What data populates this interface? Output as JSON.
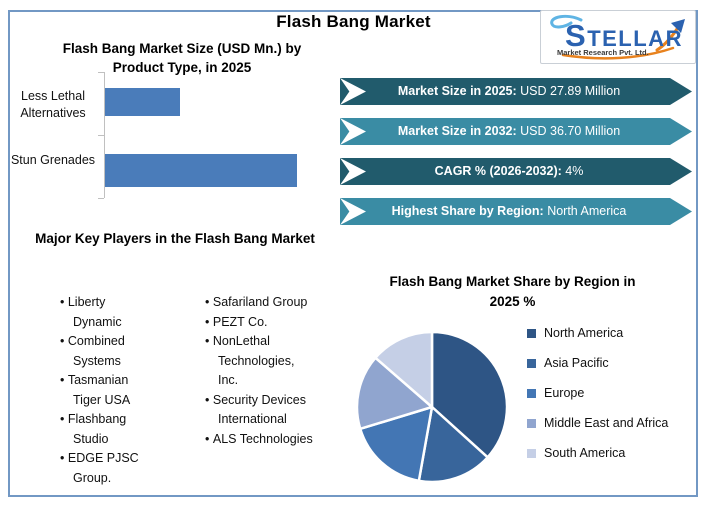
{
  "page": {
    "title": "Flash Bang Market"
  },
  "logo": {
    "brand": "STELLAR",
    "caption": "Market Research Pvt. Ltd."
  },
  "theme": {
    "banner_dark": "#215B6C",
    "banner_light": "#3A8CA4",
    "bar_color": "#4A7CBA",
    "frame_border": "#7298C4"
  },
  "banners": [
    {
      "label": "Market Size in 2025:",
      "value": "USD 27.89 Million"
    },
    {
      "label": "Market Size in 2032:",
      "value": "USD 36.70 Million"
    },
    {
      "label": "CAGR % (2026-2032):",
      "value": "4%"
    },
    {
      "label": "Highest Share by Region:",
      "value": "North America"
    }
  ],
  "key_players": {
    "heading": "Major Key Players in the Flash Bang Market",
    "column1": [
      "Liberty Dynamic",
      "Combined Systems",
      "Tasmanian Tiger USA",
      "Flashbang Studio",
      "EDGE PJSC Group."
    ],
    "column2": [
      "Safariland Group",
      "PEZT Co.",
      "NonLethal Technologies, Inc.",
      "Security Devices International",
      "ALS Technologies"
    ]
  },
  "chart_data": [
    {
      "type": "bar",
      "orientation": "horizontal",
      "title": "Flash Bang Market Size (USD Mn.) by Product Type, in 2025",
      "categories": [
        "Less Lethal Alternatives",
        "Stun Grenades"
      ],
      "values": [
        7.8,
        20.1
      ],
      "units": "USD Mn.",
      "value_axis_visible": false,
      "values_estimated_from_bar_lengths": true,
      "bar_color": "#4A7CBA",
      "grid": false
    },
    {
      "type": "pie",
      "title": "Flash Bang Market Share by Region in 2025 %",
      "labels": [
        "North America",
        "Asia Pacific",
        "Europe",
        "Middle East and Africa",
        "South America"
      ],
      "values": [
        36.7,
        16.1,
        17.5,
        16.1,
        13.6
      ],
      "colors": [
        "#2E5585",
        "#38659B",
        "#4376B4",
        "#90A5CF",
        "#C5CFE6"
      ],
      "legend_position": "right",
      "start_angle_deg": 0,
      "values_estimated_from_slice_angles": true
    }
  ]
}
